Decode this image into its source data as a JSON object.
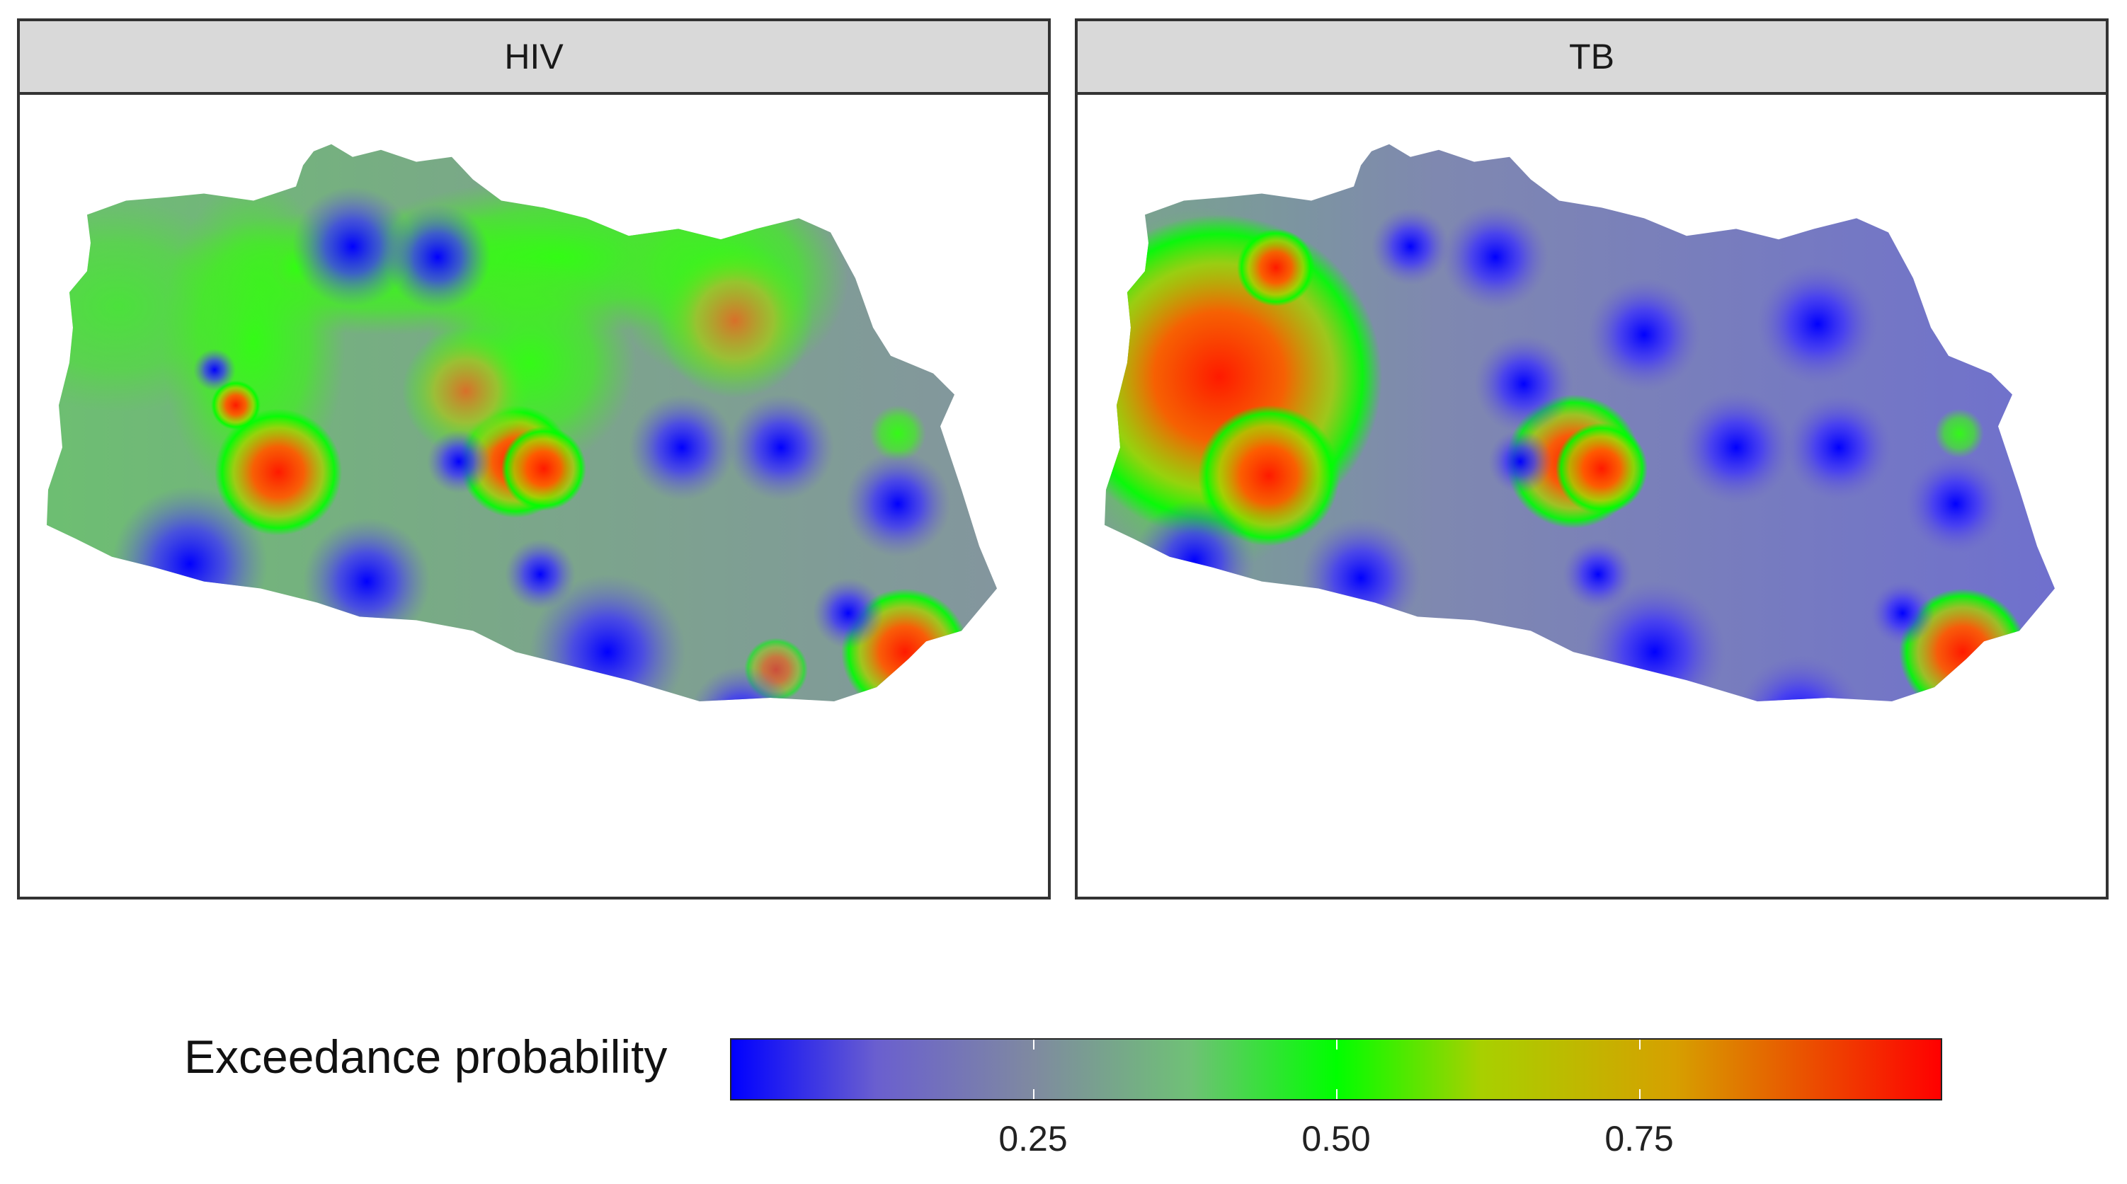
{
  "panels": [
    {
      "strip_label": "HIV"
    },
    {
      "strip_label": "TB"
    }
  ],
  "legend": {
    "title": "Exceedance probability",
    "ticks": [
      "0.25",
      "0.50",
      "0.75"
    ],
    "tick_values": [
      0.25,
      0.5,
      0.75
    ],
    "range": [
      0,
      1
    ],
    "colors": {
      "low": "#0000ff",
      "mid_low": "#7f8aa0",
      "mid": "#00ff00",
      "high": "#ff0000"
    }
  }
}
